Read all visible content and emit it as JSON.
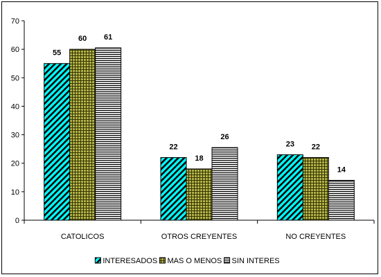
{
  "chart_data": {
    "type": "bar",
    "categories": [
      "CATOLICOS",
      "OTROS CREYENTES",
      "NO CREYENTES"
    ],
    "series": [
      {
        "name": "INTERESADOS",
        "values": [
          55,
          22,
          23
        ],
        "data_labels": [
          "55",
          "22",
          "23"
        ],
        "color": "#00ffff",
        "pattern": "diagonal-hatch-cyan"
      },
      {
        "name": "MAS O MENOS",
        "values": [
          60,
          18,
          22
        ],
        "data_labels": [
          "60",
          "18",
          "22"
        ],
        "color": "#999933",
        "pattern": "crosshatch-olive"
      },
      {
        "name": "SIN INTERES",
        "values": [
          60.5,
          25.5,
          14
        ],
        "data_labels": [
          "61",
          "26",
          "14"
        ],
        "color": "#d9d9d9",
        "pattern": "horizontal-stripe-gray"
      }
    ],
    "ylim": [
      0,
      70
    ],
    "yticks": [
      "0",
      "10",
      "20",
      "30",
      "40",
      "50",
      "60",
      "70"
    ],
    "grid": false,
    "legend_position": "bottom",
    "title": "",
    "xlabel": "",
    "ylabel": ""
  }
}
